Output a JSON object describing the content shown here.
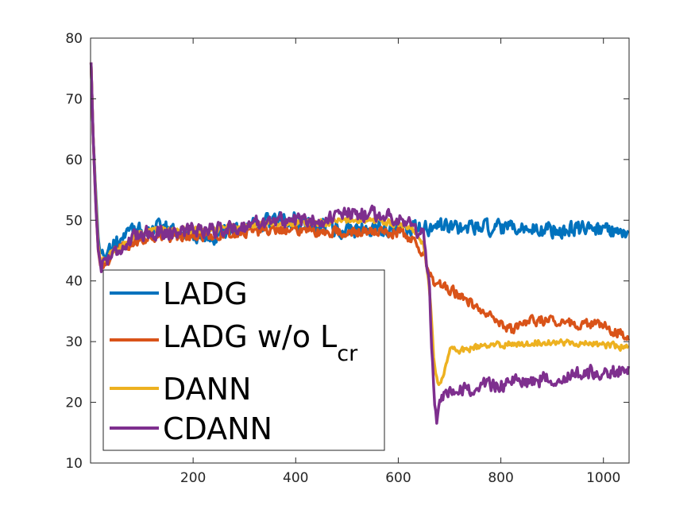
{
  "chart_data": {
    "type": "line",
    "title": "",
    "xlabel": "",
    "ylabel": "",
    "xlim": [
      0,
      1050
    ],
    "ylim": [
      10,
      80
    ],
    "xticks": [
      200,
      400,
      600,
      800,
      1000
    ],
    "xtick_labels": [
      "200",
      "400",
      "600",
      "800",
      "1000"
    ],
    "yticks": [
      10,
      20,
      30,
      40,
      50,
      60,
      70,
      80
    ],
    "ytick_labels": [
      "10",
      "20",
      "30",
      "40",
      "50",
      "60",
      "70",
      "80"
    ],
    "grid": false,
    "legend_position": "lower-left",
    "series": [
      {
        "name": "LADG",
        "legend_label": "LADG",
        "color": "#0072BD",
        "noise": 1.2,
        "points": [
          [
            1,
            76
          ],
          [
            5,
            64
          ],
          [
            10,
            55
          ],
          [
            15,
            47
          ],
          [
            20,
            44
          ],
          [
            30,
            44.5
          ],
          [
            50,
            46
          ],
          [
            80,
            48
          ],
          [
            100,
            48.5
          ],
          [
            150,
            48.5
          ],
          [
            200,
            47.5
          ],
          [
            250,
            47.5
          ],
          [
            300,
            49
          ],
          [
            350,
            50
          ],
          [
            400,
            50
          ],
          [
            450,
            49
          ],
          [
            500,
            48.5
          ],
          [
            550,
            48.5
          ],
          [
            600,
            48.5
          ],
          [
            650,
            48.5
          ],
          [
            700,
            49
          ],
          [
            800,
            48.5
          ],
          [
            900,
            48.5
          ],
          [
            1000,
            48.5
          ],
          [
            1050,
            48
          ]
        ]
      },
      {
        "name": "LADG w/o Lcr",
        "legend_label": "LADG w/o L",
        "legend_sub": "cr",
        "color": "#D95319",
        "noise": 0.8,
        "points": [
          [
            1,
            76
          ],
          [
            5,
            64
          ],
          [
            10,
            53
          ],
          [
            15,
            45
          ],
          [
            20,
            42
          ],
          [
            30,
            43
          ],
          [
            50,
            45
          ],
          [
            80,
            46.5
          ],
          [
            100,
            47
          ],
          [
            150,
            47
          ],
          [
            200,
            47.5
          ],
          [
            250,
            47.5
          ],
          [
            300,
            48
          ],
          [
            350,
            48.5
          ],
          [
            400,
            48.5
          ],
          [
            450,
            48
          ],
          [
            500,
            48
          ],
          [
            550,
            48
          ],
          [
            600,
            48
          ],
          [
            630,
            47
          ],
          [
            650,
            44
          ],
          [
            660,
            41
          ],
          [
            670,
            40
          ],
          [
            700,
            38.5
          ],
          [
            750,
            36
          ],
          [
            800,
            33
          ],
          [
            820,
            32
          ],
          [
            850,
            33.5
          ],
          [
            900,
            33.5
          ],
          [
            950,
            33
          ],
          [
            1000,
            32.5
          ],
          [
            1050,
            31
          ]
        ]
      },
      {
        "name": "DANN",
        "legend_label": "DANN",
        "color": "#EDB120",
        "noise": 0.5,
        "points": [
          [
            1,
            76
          ],
          [
            5,
            64
          ],
          [
            10,
            54
          ],
          [
            15,
            46
          ],
          [
            20,
            43
          ],
          [
            30,
            43.5
          ],
          [
            50,
            45.5
          ],
          [
            80,
            47
          ],
          [
            100,
            48
          ],
          [
            150,
            48.5
          ],
          [
            200,
            48.5
          ],
          [
            250,
            48.5
          ],
          [
            300,
            49
          ],
          [
            350,
            49.5
          ],
          [
            400,
            49.5
          ],
          [
            450,
            49.5
          ],
          [
            500,
            50
          ],
          [
            550,
            50
          ],
          [
            600,
            49.5
          ],
          [
            630,
            48.5
          ],
          [
            650,
            46
          ],
          [
            660,
            40
          ],
          [
            665,
            33
          ],
          [
            670,
            26
          ],
          [
            680,
            22.5
          ],
          [
            690,
            25
          ],
          [
            700,
            29
          ],
          [
            720,
            28.5
          ],
          [
            750,
            29
          ],
          [
            800,
            29.5
          ],
          [
            900,
            30
          ],
          [
            1000,
            29.5
          ],
          [
            1050,
            29
          ]
        ]
      },
      {
        "name": "CDANN",
        "legend_label": "CDANN",
        "color": "#7E2F8E",
        "noise": 1.1,
        "points": [
          [
            1,
            76
          ],
          [
            5,
            64
          ],
          [
            10,
            53
          ],
          [
            15,
            45
          ],
          [
            20,
            42.5
          ],
          [
            30,
            43.5
          ],
          [
            50,
            45
          ],
          [
            80,
            46.5
          ],
          [
            100,
            48
          ],
          [
            150,
            48
          ],
          [
            200,
            48.5
          ],
          [
            250,
            48.5
          ],
          [
            300,
            49
          ],
          [
            350,
            50
          ],
          [
            400,
            50
          ],
          [
            450,
            50
          ],
          [
            500,
            51
          ],
          [
            550,
            51
          ],
          [
            600,
            50.5
          ],
          [
            630,
            49
          ],
          [
            650,
            47
          ],
          [
            660,
            40
          ],
          [
            665,
            30
          ],
          [
            670,
            20
          ],
          [
            675,
            16
          ],
          [
            680,
            19
          ],
          [
            690,
            21
          ],
          [
            700,
            21
          ],
          [
            750,
            22.5
          ],
          [
            800,
            23
          ],
          [
            900,
            24
          ],
          [
            1000,
            25
          ],
          [
            1050,
            25
          ]
        ]
      }
    ]
  }
}
